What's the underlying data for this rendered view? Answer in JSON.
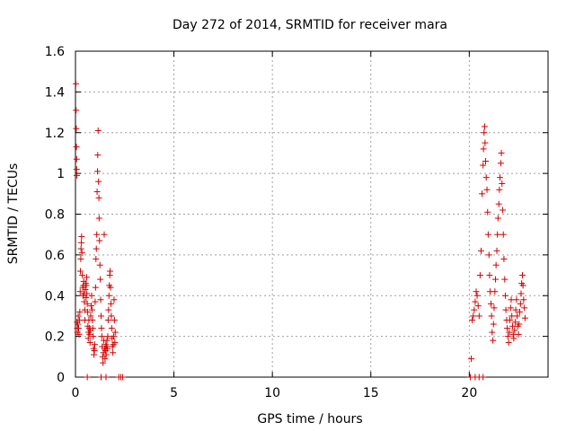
{
  "chart_data": {
    "type": "scatter",
    "title": "Day 272 of 2014, SRMTID for receiver mara",
    "xlabel": "GPS time / hours",
    "ylabel": "SRMTID / TECUs",
    "xlim": [
      0,
      24
    ],
    "ylim": [
      0,
      1.6
    ],
    "xticks": [
      0,
      5,
      10,
      15,
      20
    ],
    "yticks": [
      0,
      0.2,
      0.4,
      0.6,
      0.8,
      1,
      1.2,
      1.4,
      1.6
    ],
    "ytick_labels": [
      "0",
      "0.2",
      "0.4",
      "0.6",
      "0.8",
      "1",
      "1.2",
      "1.4",
      "1.6"
    ],
    "grid": true,
    "marker": "+",
    "color": "#d40000",
    "points": [
      [
        0.02,
        1.44
      ],
      [
        0.03,
        1.31
      ],
      [
        0.04,
        1.22
      ],
      [
        0.05,
        1.13
      ],
      [
        0.06,
        1.07
      ],
      [
        0.06,
        1.02
      ],
      [
        0.07,
        0.99
      ],
      [
        0.08,
        0.27
      ],
      [
        0.09,
        0.24
      ],
      [
        0.1,
        0.22
      ],
      [
        0.12,
        0.26
      ],
      [
        0.14,
        0.3
      ],
      [
        0.16,
        0.24
      ],
      [
        0.18,
        0.21
      ],
      [
        0.2,
        0.28
      ],
      [
        0.22,
        0.32
      ],
      [
        0.24,
        0.42
      ],
      [
        0.25,
        0.52
      ],
      [
        0.27,
        0.58
      ],
      [
        0.28,
        0.63
      ],
      [
        0.3,
        0.66
      ],
      [
        0.31,
        0.69
      ],
      [
        0.33,
        0.61
      ],
      [
        0.35,
        0.5
      ],
      [
        0.37,
        0.44
      ],
      [
        0.38,
        0.4
      ],
      [
        0.4,
        0.45
      ],
      [
        0.42,
        0.47
      ],
      [
        0.44,
        0.41
      ],
      [
        0.45,
        0.37
      ],
      [
        0.47,
        0.33
      ],
      [
        0.48,
        0.28
      ],
      [
        0.5,
        0.43
      ],
      [
        0.52,
        0.46
      ],
      [
        0.54,
        0.39
      ],
      [
        0.55,
        0.45
      ],
      [
        0.57,
        0.49
      ],
      [
        0.58,
        0.41
      ],
      [
        0.6,
        0.36
      ],
      [
        0.62,
        0.32
      ],
      [
        0.63,
        0.25
      ],
      [
        0.65,
        0.19
      ],
      [
        0.67,
        0.22
      ],
      [
        0.68,
        0.28
      ],
      [
        0.7,
        0.24
      ],
      [
        0.72,
        0.21
      ],
      [
        0.74,
        0.17
      ],
      [
        0.75,
        0.23
      ],
      [
        0.77,
        0.3
      ],
      [
        0.8,
        0.35
      ],
      [
        0.82,
        0.4
      ],
      [
        0.84,
        0.33
      ],
      [
        0.86,
        0.28
      ],
      [
        0.88,
        0.24
      ],
      [
        0.9,
        0.2
      ],
      [
        0.92,
        0.14
      ],
      [
        0.94,
        0.11
      ],
      [
        0.96,
        0.13
      ],
      [
        0.98,
        0.16
      ],
      [
        1.0,
        0.37
      ],
      [
        1.02,
        0.44
      ],
      [
        1.04,
        0.58
      ],
      [
        1.06,
        0.63
      ],
      [
        1.08,
        0.7
      ],
      [
        1.1,
        0.91
      ],
      [
        1.12,
        1.01
      ],
      [
        1.13,
        1.09
      ],
      [
        1.15,
        1.21
      ],
      [
        1.17,
        0.96
      ],
      [
        1.19,
        0.88
      ],
      [
        1.2,
        0.78
      ],
      [
        1.22,
        0.67
      ],
      [
        1.24,
        0.55
      ],
      [
        1.26,
        0.48
      ],
      [
        1.28,
        0.38
      ],
      [
        1.3,
        0.3
      ],
      [
        1.32,
        0.24
      ],
      [
        1.34,
        0.2
      ],
      [
        1.36,
        0.15
      ],
      [
        1.38,
        0.1
      ],
      [
        1.4,
        0.07
      ],
      [
        1.42,
        0.12
      ],
      [
        1.44,
        0.18
      ],
      [
        1.46,
        0.7
      ],
      [
        1.48,
        0.14
      ],
      [
        1.5,
        0.09
      ],
      [
        1.52,
        0.13
      ],
      [
        1.54,
        0.16
      ],
      [
        1.56,
        0.11
      ],
      [
        1.58,
        0.15
      ],
      [
        1.6,
        0.18
      ],
      [
        1.62,
        0.14
      ],
      [
        1.64,
        0.2
      ],
      [
        1.66,
        0.28
      ],
      [
        1.68,
        0.33
      ],
      [
        1.7,
        0.4
      ],
      [
        1.72,
        0.45
      ],
      [
        1.74,
        0.5
      ],
      [
        1.76,
        0.52
      ],
      [
        1.78,
        0.44
      ],
      [
        1.8,
        0.36
      ],
      [
        1.82,
        0.3
      ],
      [
        1.84,
        0.24
      ],
      [
        1.86,
        0.19
      ],
      [
        1.88,
        0.15
      ],
      [
        1.9,
        0.12
      ],
      [
        1.92,
        0.16
      ],
      [
        1.94,
        0.2
      ],
      [
        1.96,
        0.38
      ],
      [
        1.98,
        0.28
      ],
      [
        2.0,
        0.17
      ],
      [
        2.02,
        0.22
      ],
      [
        0.6,
        0.0
      ],
      [
        1.3,
        0.0
      ],
      [
        1.55,
        0.0
      ],
      [
        2.2,
        0.0
      ],
      [
        2.3,
        0.0
      ],
      [
        2.4,
        0.0
      ],
      [
        20.1,
        0.09
      ],
      [
        20.15,
        0.28
      ],
      [
        20.2,
        0.3
      ],
      [
        20.25,
        0.33
      ],
      [
        20.3,
        0.37
      ],
      [
        20.35,
        0.42
      ],
      [
        20.4,
        0.4
      ],
      [
        20.45,
        0.35
      ],
      [
        20.5,
        0.3
      ],
      [
        20.55,
        0.5
      ],
      [
        20.6,
        0.62
      ],
      [
        20.65,
        0.9
      ],
      [
        20.7,
        1.04
      ],
      [
        20.72,
        1.12
      ],
      [
        20.75,
        1.2
      ],
      [
        20.78,
        1.23
      ],
      [
        20.8,
        1.15
      ],
      [
        20.83,
        1.06
      ],
      [
        20.86,
        0.98
      ],
      [
        20.9,
        0.92
      ],
      [
        20.93,
        0.81
      ],
      [
        20.96,
        0.7
      ],
      [
        21.0,
        0.6
      ],
      [
        21.03,
        0.5
      ],
      [
        21.06,
        0.42
      ],
      [
        21.1,
        0.36
      ],
      [
        21.13,
        0.3
      ],
      [
        21.16,
        0.22
      ],
      [
        21.2,
        0.18
      ],
      [
        21.23,
        0.26
      ],
      [
        21.26,
        0.34
      ],
      [
        21.3,
        0.42
      ],
      [
        21.33,
        0.48
      ],
      [
        21.36,
        0.55
      ],
      [
        21.4,
        0.62
      ],
      [
        21.43,
        0.7
      ],
      [
        21.46,
        0.78
      ],
      [
        21.5,
        0.85
      ],
      [
        21.53,
        0.92
      ],
      [
        21.56,
        0.98
      ],
      [
        21.6,
        1.05
      ],
      [
        21.63,
        1.1
      ],
      [
        21.66,
        0.95
      ],
      [
        21.7,
        0.82
      ],
      [
        21.73,
        0.7
      ],
      [
        21.76,
        0.58
      ],
      [
        21.8,
        0.48
      ],
      [
        21.83,
        0.4
      ],
      [
        21.86,
        0.33
      ],
      [
        21.9,
        0.28
      ],
      [
        21.93,
        0.24
      ],
      [
        21.96,
        0.2
      ],
      [
        22.0,
        0.17
      ],
      [
        22.03,
        0.22
      ],
      [
        22.06,
        0.28
      ],
      [
        22.1,
        0.34
      ],
      [
        22.13,
        0.38
      ],
      [
        22.16,
        0.3
      ],
      [
        22.2,
        0.25
      ],
      [
        22.23,
        0.21
      ],
      [
        22.26,
        0.19
      ],
      [
        22.3,
        0.23
      ],
      [
        22.33,
        0.27
      ],
      [
        22.36,
        0.33
      ],
      [
        22.4,
        0.38
      ],
      [
        22.43,
        0.3
      ],
      [
        22.46,
        0.25
      ],
      [
        22.5,
        0.21
      ],
      [
        22.53,
        0.26
      ],
      [
        22.56,
        0.32
      ],
      [
        22.6,
        0.36
      ],
      [
        22.63,
        0.41
      ],
      [
        22.66,
        0.46
      ],
      [
        22.7,
        0.5
      ],
      [
        22.73,
        0.45
      ],
      [
        22.76,
        0.38
      ],
      [
        22.8,
        0.34
      ],
      [
        22.83,
        0.29
      ],
      [
        20.05,
        0.0
      ],
      [
        20.3,
        0.0
      ],
      [
        20.5,
        0.0
      ],
      [
        20.7,
        0.0
      ]
    ]
  }
}
